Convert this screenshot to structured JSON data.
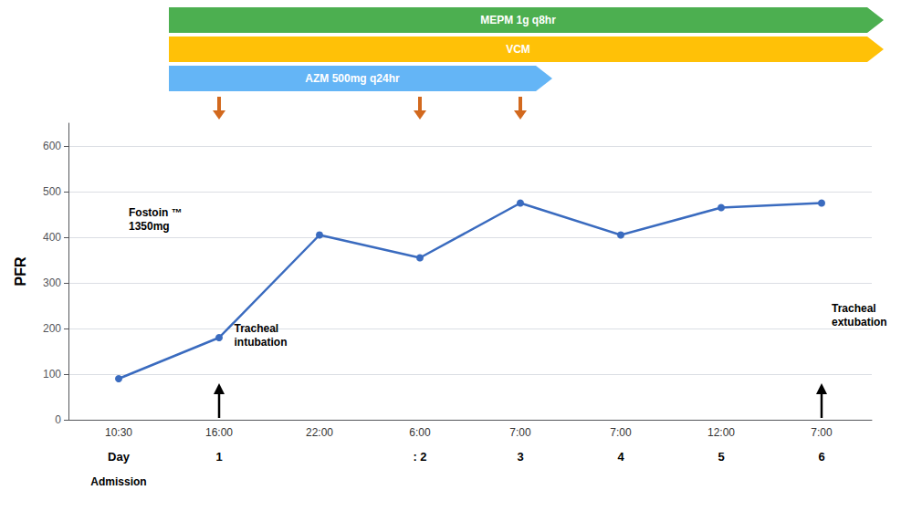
{
  "chart_data": {
    "type": "line",
    "ylabel": "PFR",
    "categories": [
      "10:30",
      "16:00",
      "22:00",
      "6:00",
      "7:00",
      "7:00",
      "12:00",
      "7:00"
    ],
    "day_labels": [
      "Day",
      "1",
      null,
      ": 2",
      "3",
      "4",
      "5",
      "6"
    ],
    "values": [
      90,
      180,
      405,
      355,
      475,
      405,
      465,
      475
    ],
    "color": "#3a6bbf",
    "marker": "circle",
    "ylim": [
      0,
      650
    ],
    "yticks": [
      0,
      100,
      200,
      300,
      400,
      500,
      600
    ],
    "grid": true,
    "periods": [
      {
        "label": "MEPM 1g q8hr",
        "color": "#4CAF50",
        "start": 0.5,
        "end": 7.5
      },
      {
        "label": "VCM",
        "color": "#FFC107",
        "start": 0.5,
        "end": 7.5
      },
      {
        "label": "AZM 500mg q24hr",
        "color": "#64B5F6",
        "start": 0.5,
        "end": 4.2
      }
    ],
    "dose_arrows": {
      "x": [
        1,
        3,
        4
      ],
      "color": "#D2691E"
    },
    "annotations": [
      {
        "text": "Admission",
        "x": 0
      },
      {
        "text": "Fostoin ™\n1350mg",
        "x": 0.1,
        "y": 440
      },
      {
        "text": "Tracheal\nintubation",
        "x": 1.15,
        "y": 185,
        "arrow_x": 1
      },
      {
        "text": "Tracheal\nextubation",
        "x": 7.1,
        "y": 230,
        "arrow_x": 7
      }
    ]
  }
}
